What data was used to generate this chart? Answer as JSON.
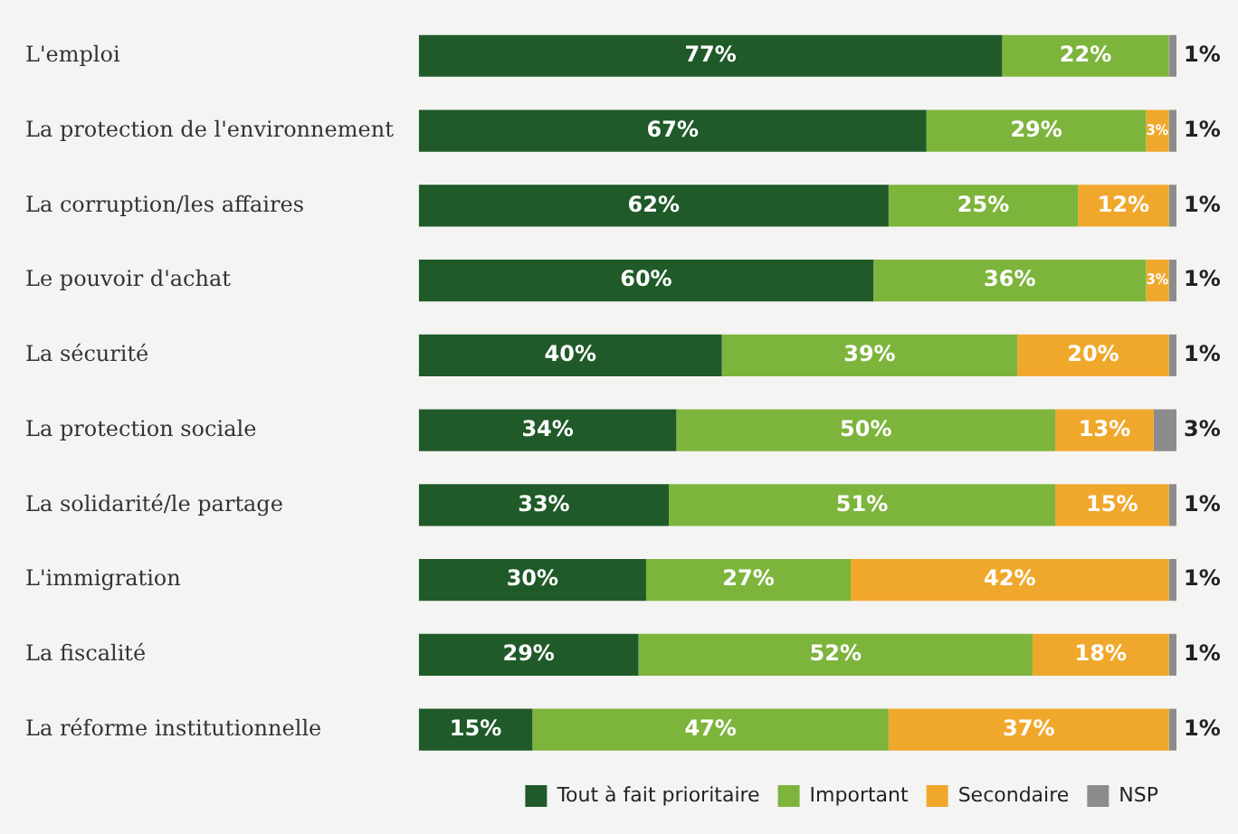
{
  "chart_data": {
    "type": "bar",
    "orientation": "horizontal",
    "stacked": true,
    "legend": "bottom right",
    "categories": [
      "L'emploi",
      "La protection de l'environnement",
      "La corruption/les affaires",
      "Le pouvoir d'achat",
      "La sécurité",
      "La protection sociale",
      "La solidarité/le partage",
      "L'immigration",
      "La fiscalité",
      "La réforme institutionnelle"
    ],
    "series": [
      {
        "name": "Tout à fait prioritaire",
        "color": "#1f5a28",
        "values": [
          77,
          67,
          62,
          60,
          40,
          34,
          33,
          30,
          29,
          15
        ],
        "value_labels": [
          "77%",
          "67%",
          "62%",
          "60%",
          "40%",
          "34%",
          "33%",
          "30%",
          "29%",
          "15%"
        ]
      },
      {
        "name": "Important",
        "color": "#7db43c",
        "values": [
          22,
          29,
          25,
          36,
          39,
          50,
          51,
          27,
          52,
          47
        ],
        "value_labels": [
          "22%",
          "29%",
          "25%",
          "36%",
          "39%",
          "50%",
          "51%",
          "27%",
          "52%",
          "47%"
        ]
      },
      {
        "name": "Secondaire",
        "color": "#f0a82c",
        "values": [
          null,
          3,
          12,
          3,
          20,
          13,
          15,
          42,
          18,
          37
        ],
        "value_labels": [
          null,
          "3%",
          "12%",
          "3%",
          "20%",
          "13%",
          "15%",
          "42%",
          "18%",
          "37%"
        ]
      },
      {
        "name": "NSP",
        "color": "#8c8c8c",
        "values": [
          1,
          1,
          1,
          1,
          1,
          3,
          1,
          1,
          1,
          1
        ],
        "value_labels": [
          "1%",
          "1%",
          "1%",
          "1%",
          "1%",
          "3%",
          "1%",
          "1%",
          "1%",
          "1%"
        ]
      }
    ]
  }
}
